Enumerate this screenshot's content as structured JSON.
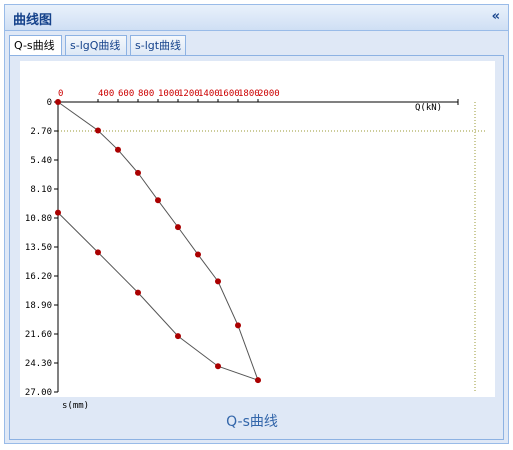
{
  "panel": {
    "title": "曲线图",
    "collapse_glyph": "«"
  },
  "tabs": [
    {
      "label": "Q-s曲线",
      "active": true
    },
    {
      "label": "s-lgQ曲线",
      "active": false
    },
    {
      "label": "s-lgt曲线",
      "active": false
    }
  ],
  "colors": {
    "point": "#aa0000",
    "line": "#555555",
    "xtick": "#cc0000",
    "refline": "#999933",
    "caption": "#3366aa"
  },
  "chart_data": {
    "type": "line",
    "title": "Q-s曲线",
    "xlabel": "Q(kN)",
    "ylabel": "s(mm)",
    "xlim": [
      0,
      4000
    ],
    "ylim": [
      0,
      27
    ],
    "y_inverted": true,
    "x_axis_position": "top",
    "x_ticks": [
      0,
      400,
      600,
      800,
      1000,
      1200,
      1400,
      1600,
      1800,
      2000
    ],
    "x_tick_labels": [
      "0",
      "400",
      "600",
      "800",
      "1000",
      "1200",
      "1400",
      "1600",
      "1800",
      "2000"
    ],
    "y_ticks": [
      0,
      2.7,
      5.4,
      8.1,
      10.8,
      13.5,
      16.2,
      18.9,
      21.6,
      24.3,
      27.0
    ],
    "y_tick_labels": [
      "0",
      "2.70",
      "5.40",
      "8.10",
      "10.80",
      "13.50",
      "16.20",
      "18.90",
      "21.60",
      "24.30",
      "27.00"
    ],
    "reference_line_y": 2.7,
    "series": [
      {
        "points": [
          [
            0,
            0
          ],
          [
            400,
            2.65
          ],
          [
            600,
            4.45
          ],
          [
            800,
            6.6
          ],
          [
            1000,
            9.15
          ],
          [
            1200,
            11.65
          ],
          [
            1400,
            14.2
          ],
          [
            1600,
            16.7
          ],
          [
            1800,
            20.8
          ],
          [
            2000,
            25.9
          ],
          [
            1600,
            24.6
          ],
          [
            1200,
            21.8
          ],
          [
            800,
            17.75
          ],
          [
            400,
            14.0
          ],
          [
            0,
            10.3
          ]
        ]
      }
    ]
  }
}
